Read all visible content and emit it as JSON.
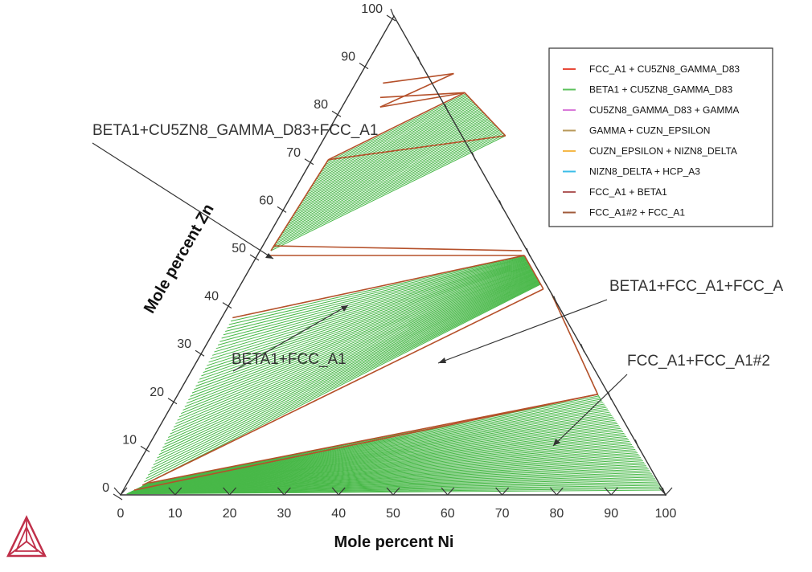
{
  "chart_data": {
    "type": "ternary-isothermal-section",
    "xlabel": "Mole percent Ni",
    "ylabel": "Mole percent Zn",
    "x_ticks": [
      "0",
      "10",
      "20",
      "30",
      "40",
      "50",
      "60",
      "70",
      "80",
      "90",
      "100"
    ],
    "y_ticks": [
      "0",
      "10",
      "20",
      "30",
      "40",
      "50",
      "60",
      "70",
      "80",
      "90",
      "100"
    ],
    "xlim": [
      0,
      100
    ],
    "ylim": [
      0,
      100
    ],
    "colors": {
      "red": "#e8473a",
      "green": "#48b848",
      "brown": "#b5502a",
      "axis": "#333333"
    },
    "legend": [
      {
        "label": "FCC_A1 + CU5ZN8_GAMMA_D83",
        "color": "#e84a3a"
      },
      {
        "label": "BETA1 + CU5ZN8_GAMMA_D83",
        "color": "#5cc15c"
      },
      {
        "label": "CU5ZN8_GAMMA_D83 + GAMMA",
        "color": "#d97ad9"
      },
      {
        "label": "GAMMA + CUZN_EPSILON",
        "color": "#b8995a"
      },
      {
        "label": "CUZN_EPSILON + NIZN8_DELTA",
        "color": "#f5b94a"
      },
      {
        "label": "NIZN8_DELTA + HCP_A3",
        "color": "#3bbde8"
      },
      {
        "label": "FCC_A1 + BETA1",
        "color": "#b05a5a"
      },
      {
        "label": "FCC_A1#2 + FCC_A1",
        "color": "#a05a3a"
      }
    ],
    "annotations": [
      {
        "text": "BETA1+CU5ZN8_GAMMA_D83+FCC_A1"
      },
      {
        "text": "BETA1+FCC_A1"
      },
      {
        "text": "BETA1+FCC_A1+FCC_A"
      },
      {
        "text": "FCC_A1+FCC_A1#2"
      }
    ],
    "phase_boundaries": [
      {
        "name": "bcc-fcc-cu-side",
        "color": "red",
        "points": [
          [
            5,
            86
          ],
          [
            17,
            88
          ]
        ]
      },
      {
        "name": "gamma-left",
        "color": "red",
        "points": [
          [
            6,
            83
          ],
          [
            21,
            84
          ]
        ]
      },
      {
        "name": "gamma-right",
        "color": "red",
        "points": [
          [
            7,
            81
          ],
          [
            17,
            88
          ]
        ]
      },
      {
        "name": "gamma-lower",
        "color": "red",
        "points": [
          [
            7,
            81
          ],
          [
            21,
            84
          ]
        ]
      },
      {
        "name": "beta-gamma-left",
        "color": "red",
        "points": [
          [
            3,
            70
          ],
          [
            21,
            84
          ]
        ]
      },
      {
        "name": "beta-gamma-right",
        "color": "red",
        "points": [
          [
            21,
            84
          ],
          [
            33,
            75
          ]
        ]
      },
      {
        "name": "beta-gamma-bottom",
        "color": "red",
        "points": [
          [
            3,
            70
          ],
          [
            33,
            75
          ]
        ]
      },
      {
        "name": "beta-gamma-lower",
        "color": "red",
        "points": [
          [
            2,
            51
          ],
          [
            3,
            70
          ]
        ]
      },
      {
        "name": "three-phase-top",
        "color": "red",
        "points": [
          [
            2,
            52
          ],
          [
            48,
            51
          ]
        ]
      },
      {
        "name": "three-phase-bottom",
        "color": "red",
        "points": [
          [
            2,
            50
          ],
          [
            49,
            50
          ]
        ]
      },
      {
        "name": "beta-fcc-upper",
        "color": "red",
        "points": [
          [
            2,
            37
          ],
          [
            49,
            50
          ]
        ]
      },
      {
        "name": "beta-fcc-right",
        "color": "red",
        "points": [
          [
            49,
            50
          ],
          [
            56,
            43
          ]
        ]
      },
      {
        "name": "beta-fcc-lower",
        "color": "red",
        "points": [
          [
            3,
            2
          ],
          [
            56,
            43
          ]
        ]
      },
      {
        "name": "fcc-miscibility-top",
        "color": "red",
        "points": [
          [
            4,
            2.5
          ],
          [
            77,
            21
          ]
        ]
      },
      {
        "name": "fcc-miscibility-side",
        "color": "red",
        "points": [
          [
            77,
            21
          ],
          [
            58,
            42
          ]
        ]
      },
      {
        "name": "fcc-miscibility-bottom",
        "color": "red",
        "points": [
          [
            2,
            1
          ],
          [
            77,
            21
          ]
        ]
      }
    ],
    "tie_line_groups": [
      {
        "name": "beta1-gamma",
        "color": "green",
        "count": 38,
        "start_a": [
          3,
          70
        ],
        "end_a": [
          2,
          51
        ],
        "start_b": [
          21,
          84
        ],
        "end_b": [
          33,
          75
        ]
      },
      {
        "name": "beta1-fcc",
        "color": "green",
        "count": 50,
        "start_a": [
          2,
          37
        ],
        "end_a": [
          3,
          2
        ],
        "start_b": [
          49,
          50
        ],
        "end_b": [
          55,
          44
        ]
      },
      {
        "name": "fcc-fcc2",
        "color": "green",
        "count": 60,
        "start_a": [
          4,
          2.5
        ],
        "end_a": [
          1,
          0.2
        ],
        "start_b": [
          77,
          21
        ],
        "end_b": [
          99,
          1
        ]
      },
      {
        "name": "fcc-fcc2-edge",
        "color": "green",
        "count": 14,
        "start_a": [
          57,
          43
        ],
        "end_a": [
          77,
          21
        ],
        "start_b": [
          58,
          42
        ],
        "end_b": [
          78,
          20
        ]
      }
    ]
  }
}
